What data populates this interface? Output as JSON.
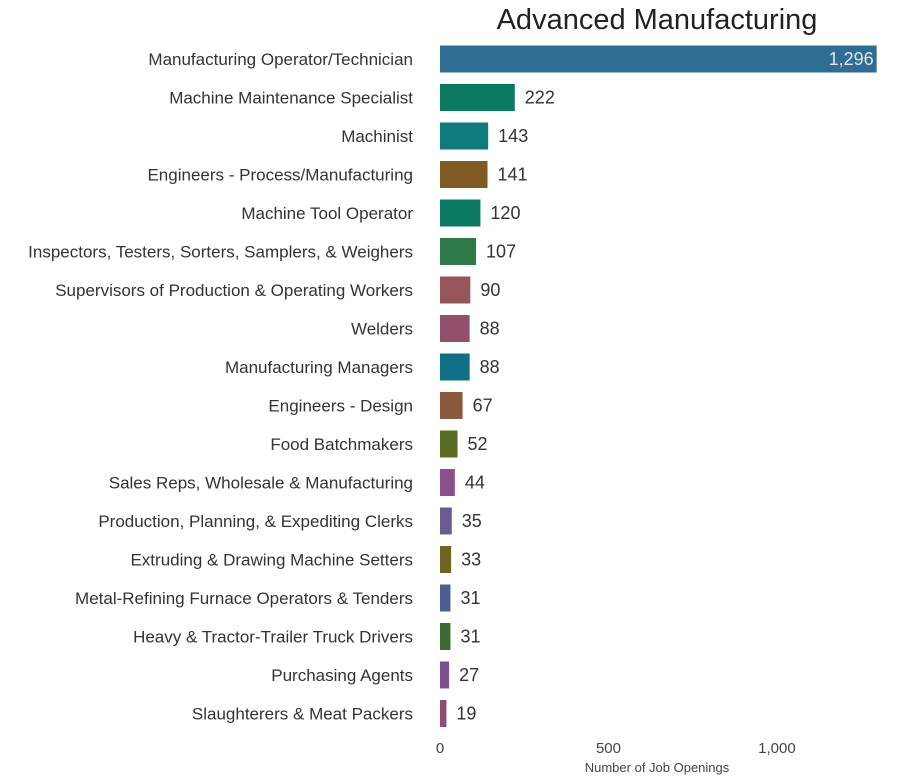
{
  "chart_data": {
    "type": "bar",
    "orientation": "horizontal",
    "title": "Advanced Manufacturing",
    "xlabel": "Number of Job Openings",
    "ylabel": "",
    "xlim": [
      0,
      1300
    ],
    "xticks": [
      0,
      500,
      1000
    ],
    "xtick_labels": [
      "0",
      "500",
      "1,000"
    ],
    "grid": false,
    "legend": "none",
    "categories": [
      "Manufacturing Operator/Technician",
      "Machine Maintenance Specialist",
      "Machinist",
      "Engineers - Process/Manufacturing",
      "Machine Tool Operator",
      "Inspectors, Testers, Sorters, Samplers, & Weighers",
      "Supervisors of Production & Operating Workers",
      "Welders",
      "Manufacturing Managers",
      "Engineers - Design",
      "Food Batchmakers",
      "Sales Reps, Wholesale & Manufacturing",
      "Production, Planning, & Expediting Clerks",
      "Extruding & Drawing Machine Setters",
      "Metal-Refining Furnace Operators & Tenders",
      "Heavy & Tractor-Trailer Truck Drivers",
      "Purchasing Agents",
      "Slaughterers & Meat Packers"
    ],
    "values": [
      1296,
      222,
      143,
      141,
      120,
      107,
      90,
      88,
      88,
      67,
      52,
      44,
      35,
      33,
      31,
      31,
      27,
      19
    ],
    "value_labels": [
      "1,296",
      "222",
      "143",
      "141",
      "120",
      "107",
      "90",
      "88",
      "88",
      "67",
      "52",
      "44",
      "35",
      "33",
      "31",
      "31",
      "27",
      "19"
    ],
    "colors": [
      "#2e6d94",
      "#0c7a5e",
      "#0f7b7d",
      "#7f5a22",
      "#0c7a63",
      "#2f7a48",
      "#94565a",
      "#93506a",
      "#0e6f86",
      "#8b5a3d",
      "#5c6b22",
      "#8b4f8a",
      "#6a5b97",
      "#6e6522",
      "#4a5e92",
      "#3c6a35",
      "#7d4f8f",
      "#8c4d73"
    ]
  }
}
